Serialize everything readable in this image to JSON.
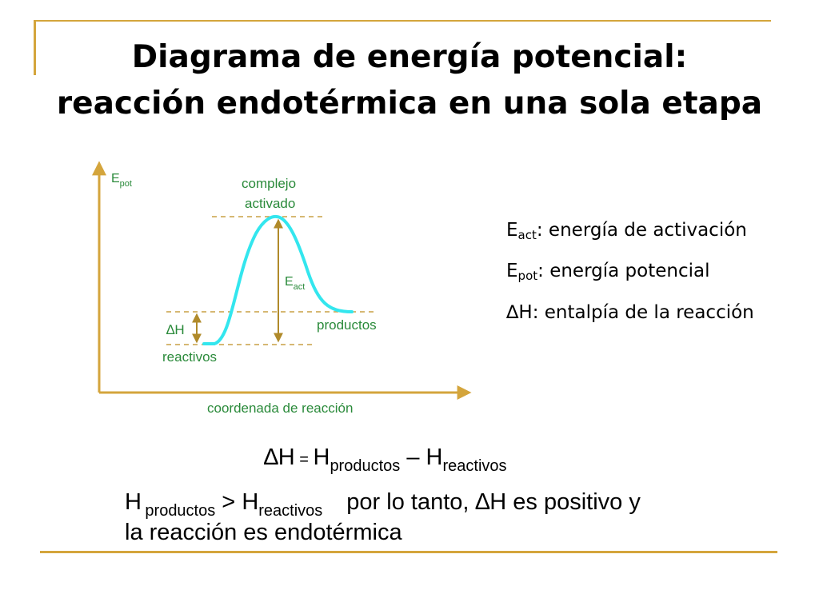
{
  "title": {
    "line1": "Diagrama de energía potencial:",
    "line2": "reacción endotérmica en una sola etapa"
  },
  "diagram": {
    "y_axis_label": "E",
    "y_axis_label_sub": "pot",
    "x_axis_label": "coordenada de reacción",
    "complex_label_1": "complejo",
    "complex_label_2": "activado",
    "eact_label": "E",
    "eact_label_sub": "act",
    "products_label": "productos",
    "reactants_label": "reactivos",
    "dh_label": "∆H",
    "colors": {
      "curve": "#33e6ee",
      "text": "#2a8a3a",
      "axis": "#d4a53c",
      "dashed": "#c9a045"
    }
  },
  "legend": [
    {
      "sym": "E",
      "sub": "act",
      "text": ": energía de activación"
    },
    {
      "sym": "E",
      "sub": "pot",
      "text": ": energía potencial"
    },
    {
      "sym": "∆H",
      "sub": "",
      "text": ": entalpía de la reacción"
    }
  ],
  "equation": {
    "dh": "∆H",
    "eq": " = ",
    "h1": "H",
    "sub1": "productos",
    "minus": " – ",
    "h2": "H",
    "sub2": "reactivos"
  },
  "conclusion": {
    "h1": "H",
    "sub1": "productos",
    "gt": " > ",
    "h2": "H",
    "sub2": "reactivos",
    "rest": "por lo tanto, ∆H es positivo y",
    "line2": "la reacción es endotérmica"
  }
}
